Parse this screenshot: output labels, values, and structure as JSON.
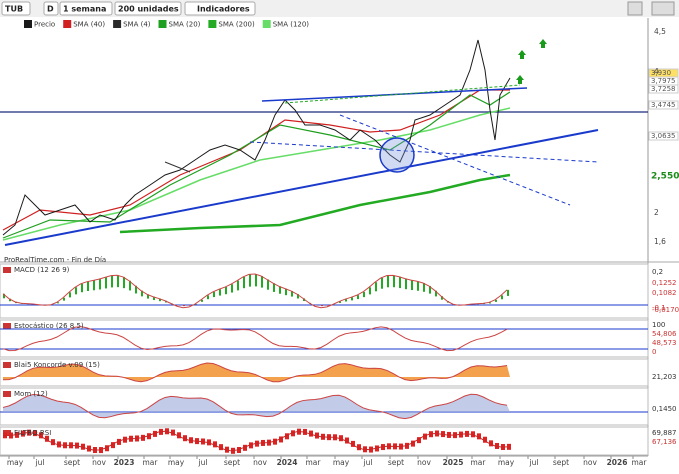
{
  "toolbar": {
    "symbol": "TUB",
    "mode": "D",
    "period": "1 semana",
    "units": "200 unidades",
    "indicators": "Indicadores"
  },
  "legend": [
    {
      "label": "Precio",
      "color": "#1a1a1a"
    },
    {
      "label": "SMA (40)",
      "color": "#d02020"
    },
    {
      "label": "SMA (4)",
      "color": "#2a2a2a"
    },
    {
      "label": "SMA (20)",
      "color": "#1f9f1f"
    },
    {
      "label": "SMA (200)",
      "color": "#22aa22"
    },
    {
      "label": "SMA (120)",
      "color": "#66dd66"
    }
  ],
  "price_axis": [
    "4,5",
    "4",
    "2",
    "1,6"
  ],
  "price_badges": [
    {
      "label": "3,930",
      "color": "#ffe066"
    },
    {
      "label": "3,7975",
      "color": "#ffffff"
    },
    {
      "label": "3,7258",
      "color": "#ffffff"
    },
    {
      "label": "3,4745",
      "color": "#ffffff"
    },
    {
      "label": "3,0635",
      "color": "#ffffff"
    },
    {
      "label": "2,550",
      "color": "#ffffff"
    }
  ],
  "footer": "ProRealTime.com - Fin de Día",
  "panels": [
    {
      "title": "MACD (12 26 9)",
      "labels": [
        "0,2",
        "0,1252",
        "0,1082",
        "-0,1",
        "-0,0170"
      ]
    },
    {
      "title": "Estocástico (26 8 5)",
      "labels": [
        "100",
        "54,806",
        "48,573",
        "0"
      ]
    },
    {
      "title": "Blai5 Koncorde v.09 (15)",
      "labels": [
        "21,203"
      ]
    },
    {
      "title": "Mom (12)",
      "labels": [
        "0,1450"
      ]
    },
    {
      "title": "FILTRO RSI",
      "labels": [
        "69,887",
        "67,136"
      ]
    }
  ],
  "time_axis": [
    "may",
    "jul",
    "sept",
    "nov",
    "2023",
    "mar",
    "may",
    "jul",
    "sept",
    "nov",
    "2024",
    "mar",
    "may",
    "jul",
    "sept",
    "nov",
    "2025",
    "mar",
    "may",
    "jul",
    "sept",
    "nov",
    "2026",
    "mar"
  ]
}
